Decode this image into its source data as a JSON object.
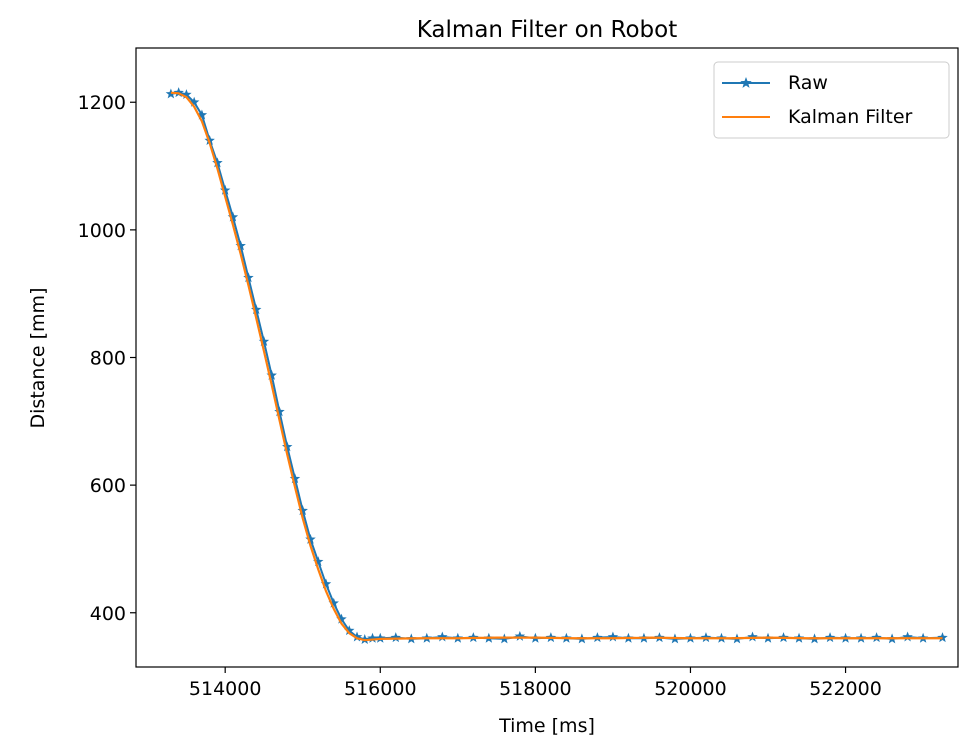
{
  "chart_data": {
    "type": "line",
    "title": "Kalman Filter on Robot",
    "xlabel": "Time [ms]",
    "ylabel": "Distance [mm]",
    "xlim": [
      512850,
      523450
    ],
    "ylim": [
      315,
      1285
    ],
    "xticks": [
      514000,
      516000,
      518000,
      520000,
      522000
    ],
    "xtick_labels": [
      "514000",
      "516000",
      "518000",
      "520000",
      "522000"
    ],
    "yticks": [
      400,
      600,
      800,
      1000,
      1200
    ],
    "ytick_labels": [
      "400",
      "600",
      "800",
      "1000",
      "1200"
    ],
    "grid": false,
    "legend_position": "top-right",
    "series": [
      {
        "name": "Raw",
        "color": "#1f77b4",
        "marker": "star",
        "x": [
          513300,
          513400,
          513500,
          513600,
          513700,
          513800,
          513900,
          514000,
          514100,
          514200,
          514300,
          514400,
          514500,
          514600,
          514700,
          514800,
          514900,
          515000,
          515100,
          515200,
          515300,
          515400,
          515500,
          515600,
          515700,
          515800,
          515900,
          516000,
          516200,
          516400,
          516600,
          516800,
          517000,
          517200,
          517400,
          517600,
          517800,
          518000,
          518200,
          518400,
          518600,
          518800,
          519000,
          519200,
          519400,
          519600,
          519800,
          520000,
          520200,
          520400,
          520600,
          520800,
          521000,
          521200,
          521400,
          521600,
          521800,
          522000,
          522200,
          522400,
          522600,
          522800,
          523000,
          523250
        ],
        "y": [
          1213,
          1215,
          1212,
          1200,
          1180,
          1140,
          1105,
          1062,
          1020,
          975,
          925,
          875,
          825,
          772,
          715,
          660,
          610,
          560,
          515,
          480,
          445,
          415,
          390,
          372,
          362,
          358,
          360,
          360,
          361,
          359,
          360,
          362,
          360,
          361,
          360,
          359,
          363,
          360,
          361,
          360,
          359,
          361,
          362,
          360,
          360,
          361,
          359,
          360,
          361,
          360,
          359,
          362,
          360,
          361,
          360,
          359,
          361,
          360,
          360,
          361,
          359,
          362,
          360,
          361
        ]
      },
      {
        "name": "Kalman Filter",
        "color": "#ff7f0e",
        "x": [
          513300,
          513400,
          513500,
          513600,
          513700,
          513800,
          513900,
          514000,
          514100,
          514200,
          514300,
          514400,
          514500,
          514600,
          514700,
          514800,
          514900,
          515000,
          515100,
          515200,
          515300,
          515400,
          515500,
          515600,
          515700,
          515800,
          515900,
          516000,
          516500,
          517000,
          517500,
          518000,
          518500,
          519000,
          519500,
          520000,
          520500,
          521000,
          521500,
          522000,
          522500,
          523000,
          523250
        ],
        "y": [
          1215,
          1214,
          1208,
          1193,
          1170,
          1136,
          1096,
          1052,
          1008,
          962,
          913,
          862,
          810,
          757,
          702,
          648,
          597,
          548,
          505,
          468,
          434,
          406,
          383,
          368,
          360,
          357,
          358,
          359,
          360,
          360,
          361,
          361,
          360,
          360,
          361,
          360,
          360,
          361,
          360,
          360,
          360,
          360,
          360
        ]
      }
    ]
  }
}
